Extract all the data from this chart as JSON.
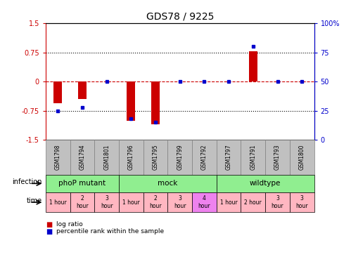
{
  "title": "GDS78 / 9225",
  "samples": [
    "GSM1798",
    "GSM1794",
    "GSM1801",
    "GSM1796",
    "GSM1795",
    "GSM1799",
    "GSM1792",
    "GSM1797",
    "GSM1791",
    "GSM1793",
    "GSM1800"
  ],
  "log_ratio": [
    -0.55,
    -0.45,
    0.0,
    -1.0,
    -1.1,
    0.0,
    0.0,
    0.0,
    0.77,
    0.0,
    0.0
  ],
  "percentile": [
    25,
    28,
    50,
    18,
    15,
    50,
    50,
    50,
    80,
    50,
    50
  ],
  "ylim_left": [
    -1.5,
    1.5
  ],
  "ylim_right": [
    0,
    100
  ],
  "infection_groups": [
    {
      "label": "phoP mutant",
      "start": 0,
      "end": 3
    },
    {
      "label": "mock",
      "start": 3,
      "end": 7
    },
    {
      "label": "wildtype",
      "start": 7,
      "end": 11
    }
  ],
  "time_entries": [
    {
      "idx": 0,
      "label": "1 hour",
      "color": "#FFB6C1"
    },
    {
      "idx": 1,
      "label": "2\nhour",
      "color": "#FFB6C1"
    },
    {
      "idx": 2,
      "label": "3\nhour",
      "color": "#FFB6C1"
    },
    {
      "idx": 3,
      "label": "1 hour",
      "color": "#FFB6C1"
    },
    {
      "idx": 4,
      "label": "2\nhour",
      "color": "#FFB6C1"
    },
    {
      "idx": 5,
      "label": "3\nhour",
      "color": "#FFB6C1"
    },
    {
      "idx": 6,
      "label": "4\nhour",
      "color": "#EE82EE"
    },
    {
      "idx": 7,
      "label": "1 hour",
      "color": "#FFB6C1"
    },
    {
      "idx": 8,
      "label": "2 hour",
      "color": "#FFB6C1"
    },
    {
      "idx": 9,
      "label": "3\nhour",
      "color": "#FFB6C1"
    },
    {
      "idx": 10,
      "label": "3\nhour",
      "color": "#FFB6C1"
    }
  ],
  "bar_color": "#CC0000",
  "percentile_color": "#0000CC",
  "left_tick_color": "#CC0000",
  "right_tick_color": "#0000CC",
  "green_color": "#90EE90",
  "sample_bg_color": "#C0C0C0",
  "sample_border_color": "#808080"
}
